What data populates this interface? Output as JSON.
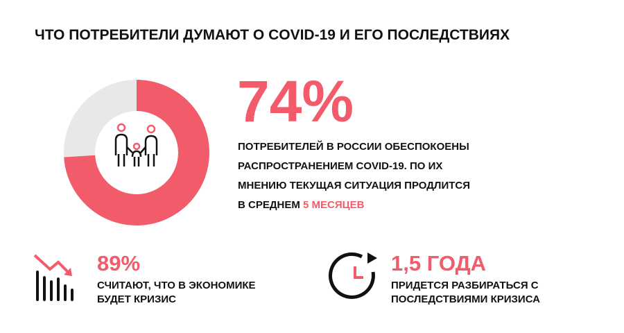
{
  "title": "ЧТО ПОТРЕБИТЕЛИ ДУМАЮТ О COVID-19 И ЕГО ПОСЛЕДСТВИЯХ",
  "donut": {
    "value": 74,
    "color": "#f25c6a",
    "rest_color": "#e8e8e8"
  },
  "headline": {
    "value": "74%",
    "lines": [
      "ПОТРЕБИТЕЛЕЙ В РОССИИ ОБЕСПОКОЕНЫ",
      "РАСПРОСТРАНЕНИЕМ COVID-19. ПО ИХ",
      "МНЕНИЮ ТЕКУЩАЯ СИТУАЦИЯ ПРОДЛИТСЯ",
      "В СРЕДНЕМ"
    ],
    "highlight": "5 МЕСЯЦЕВ"
  },
  "stats": [
    {
      "value": "89%",
      "lines": [
        "СЧИТАЮТ, ЧТО В ЭКОНОМИКЕ",
        "БУДЕТ КРИЗИС"
      ]
    },
    {
      "value": "1,5 ГОДА",
      "lines": [
        "ПРИДЕТСЯ РАЗБИРАТЬСЯ С",
        "ПОСЛЕДСТВИЯМИ КРИЗИСА"
      ]
    }
  ]
}
